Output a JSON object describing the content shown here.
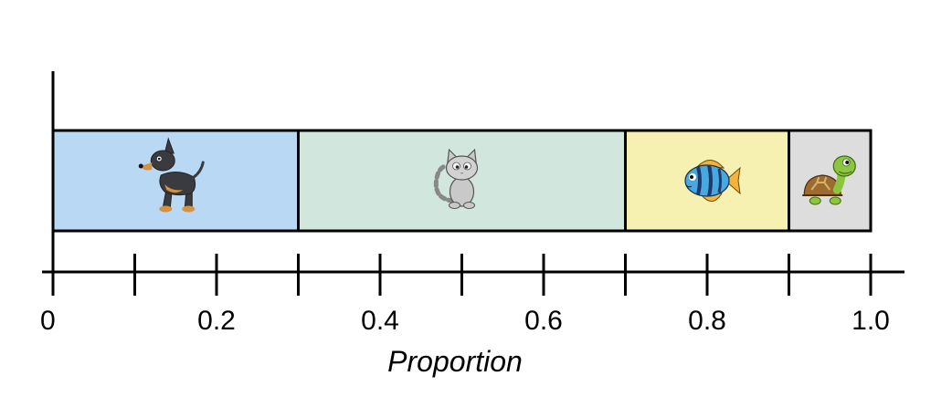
{
  "chart_data": {
    "type": "bar",
    "orientation": "horizontal-stacked",
    "xlabel": "Proportion",
    "xlim": [
      0,
      1.0
    ],
    "xticks_minor_step": 0.1,
    "tick_labels": [
      "0",
      "0.2",
      "0.4",
      "0.6",
      "0.8",
      "1.0"
    ],
    "segments": [
      {
        "icon": "dog-icon",
        "start": 0.0,
        "end": 0.3,
        "value": 0.3,
        "color": "#b8d8f4"
      },
      {
        "icon": "cat-icon",
        "start": 0.3,
        "end": 0.7,
        "value": 0.4,
        "color": "#d1e6dd"
      },
      {
        "icon": "fish-icon",
        "start": 0.7,
        "end": 0.9,
        "value": 0.2,
        "color": "#f6f0b1"
      },
      {
        "icon": "turtle-icon",
        "start": 0.9,
        "end": 1.0,
        "value": 0.1,
        "color": "#dddddd"
      }
    ]
  }
}
